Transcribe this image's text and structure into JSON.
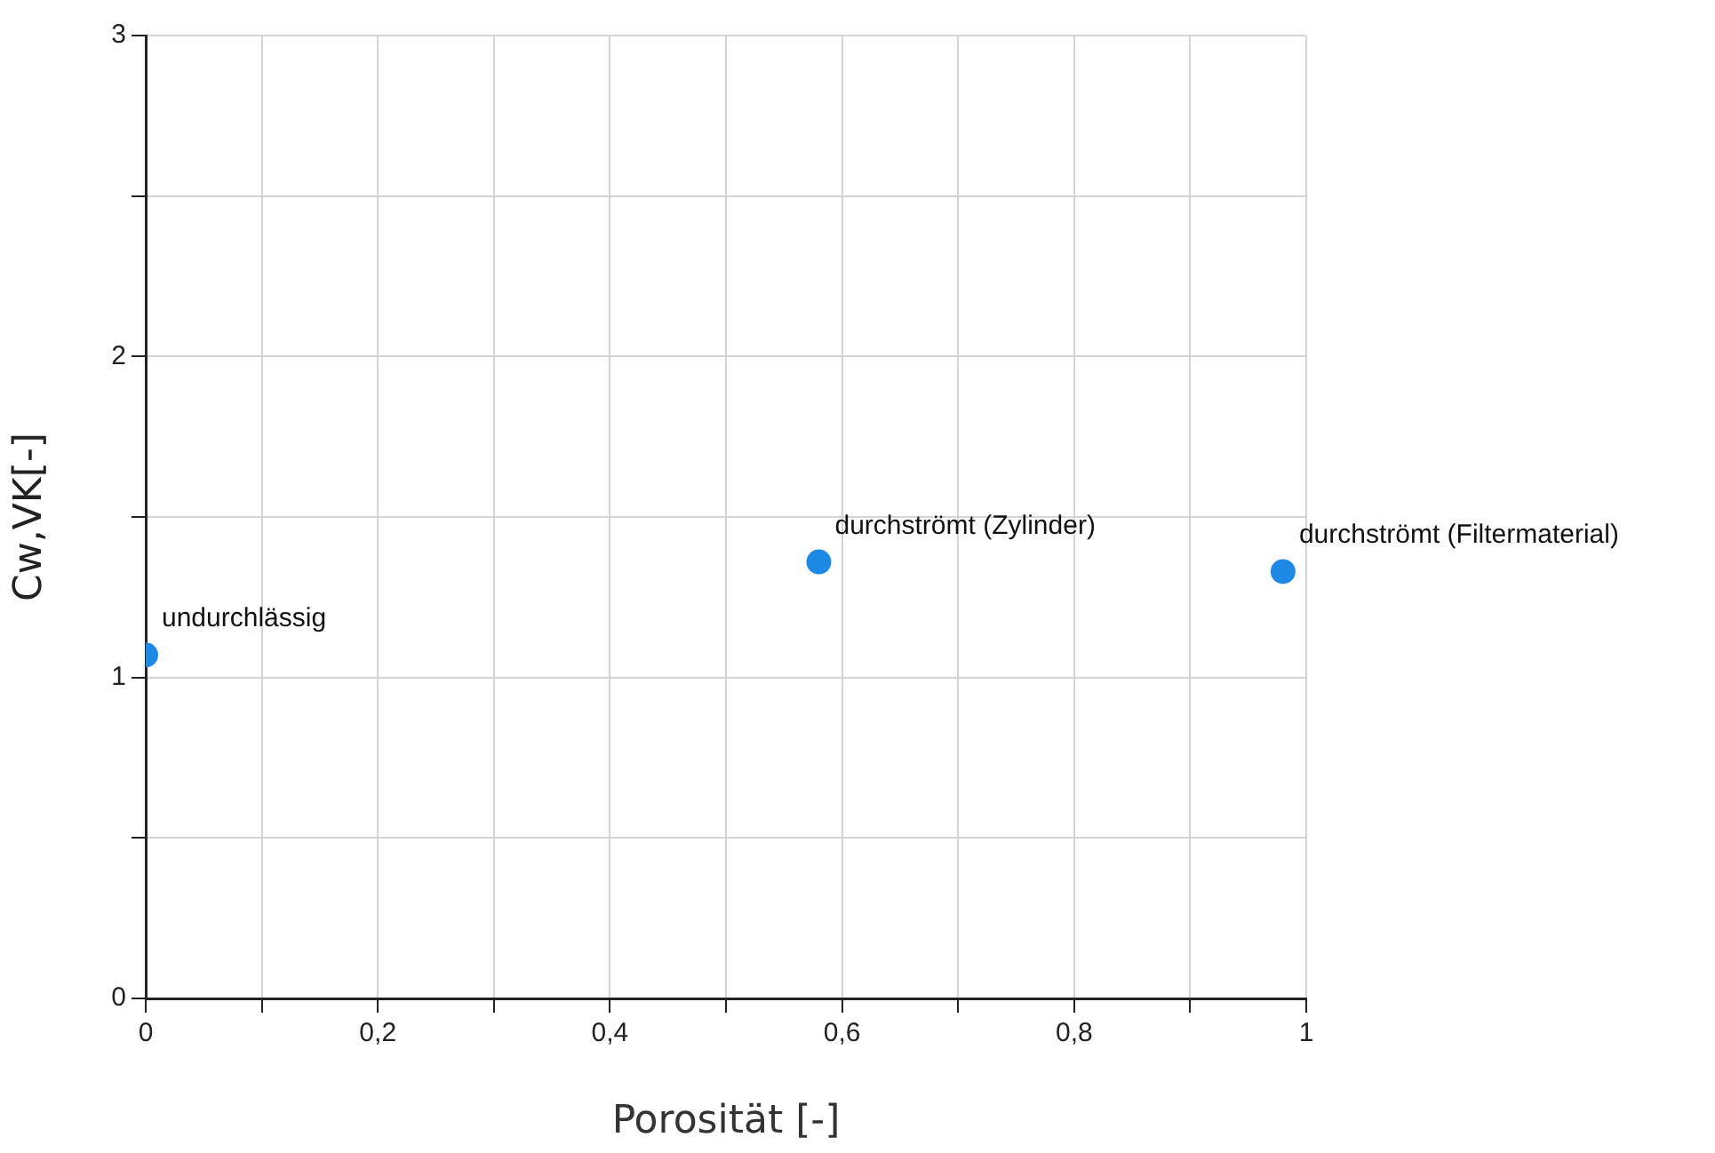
{
  "chart_data": {
    "type": "scatter",
    "xlabel": "Porosität [-]",
    "ylabel": "Cw,VK[-]",
    "x": [
      0,
      0.58,
      0.98
    ],
    "series": [
      {
        "color": "#1e88e5",
        "values": [
          1.07,
          1.36,
          1.33
        ]
      }
    ],
    "xlim": [
      0,
      1
    ],
    "ylim": [
      0,
      3
    ],
    "xticks": [
      0,
      {
        "value": 0.1,
        "label": null
      },
      {
        "value": 0.2,
        "label": "0,2"
      },
      {
        "value": 0.3,
        "label": null
      },
      {
        "value": 0.4,
        "label": "0,4"
      },
      {
        "value": 0.5,
        "label": null
      },
      {
        "value": 0.6,
        "label": "0,6"
      },
      {
        "value": 0.7,
        "label": null
      },
      {
        "value": 0.8,
        "label": "0,8"
      },
      {
        "value": 0.9,
        "label": null
      },
      1
    ],
    "yticks": [
      0,
      {
        "value": 0.5,
        "label": null
      },
      1,
      {
        "value": 1.5,
        "label": null
      },
      2,
      {
        "value": 2.5,
        "label": null
      },
      3
    ],
    "grid": true,
    "legend": false,
    "marker": "circle",
    "annotations": [
      {
        "text": "undurchlässig",
        "x": 0,
        "y": 1.07
      },
      {
        "text": "durchströmt (Zylinder)",
        "x": 0.58,
        "y": 1.36
      },
      {
        "text": "durchströmt (Filtermaterial)",
        "x": 0.98,
        "y": 1.33
      }
    ]
  }
}
